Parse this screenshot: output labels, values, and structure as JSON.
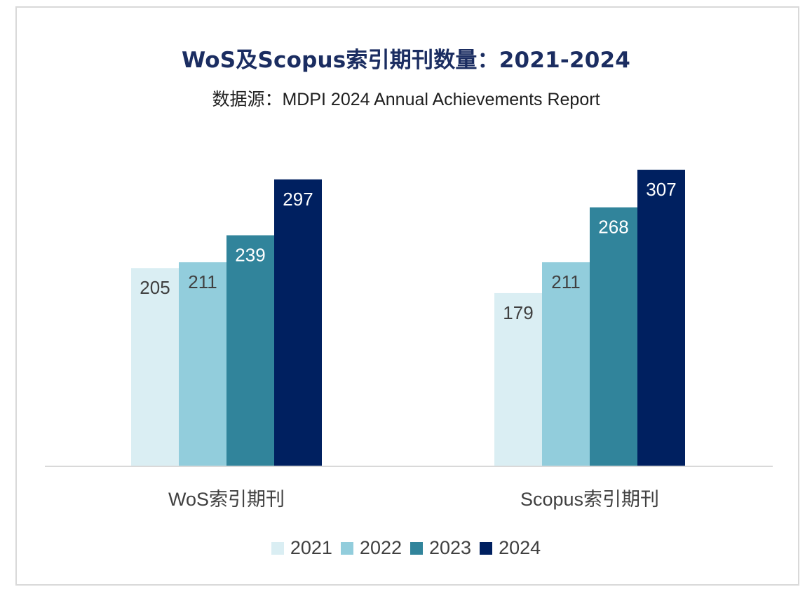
{
  "chart_data": {
    "type": "bar",
    "title": "WoS及Scopus索引期刊数量：2021-2024",
    "subtitle": "数据源：MDPI 2024 Annual Achievements Report",
    "categories": [
      "WoS索引期刊",
      "Scopus索引期刊"
    ],
    "series": [
      {
        "name": "2021",
        "values": [
          205,
          179
        ],
        "color": "#daeef3",
        "label_color": "#404040"
      },
      {
        "name": "2022",
        "values": [
          211,
          211
        ],
        "color": "#92cddc",
        "label_color": "#404040"
      },
      {
        "name": "2023",
        "values": [
          239,
          268
        ],
        "color": "#31849b",
        "label_color": "#ffffff"
      },
      {
        "name": "2024",
        "values": [
          297,
          307
        ],
        "color": "#002060",
        "label_color": "#ffffff"
      }
    ],
    "ylim": [
      0,
      310
    ],
    "grid": false,
    "legend_position": "bottom"
  }
}
